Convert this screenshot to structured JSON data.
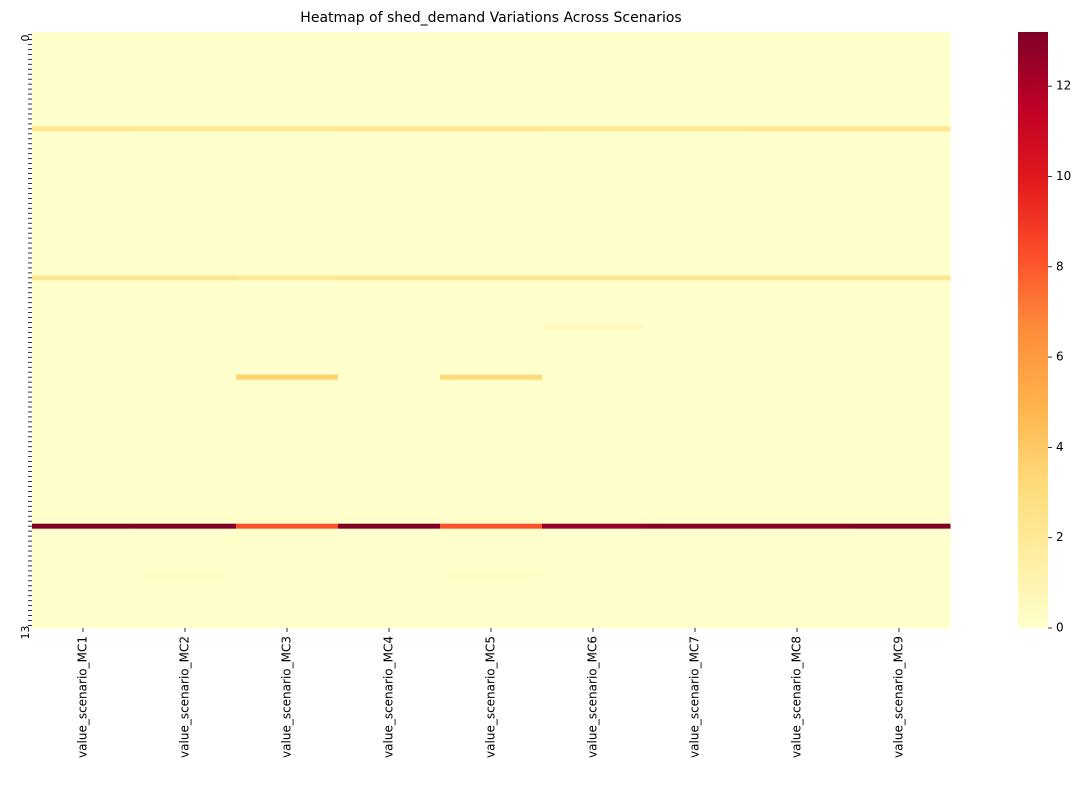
{
  "chart_data": {
    "type": "heatmap",
    "title": "Heatmap of shed_demand Variations Across Scenarios",
    "categories": [
      "value_scenario_MC1",
      "value_scenario_MC2",
      "value_scenario_MC3",
      "value_scenario_MC4",
      "value_scenario_MC5",
      "value_scenario_MC6",
      "value_scenario_MC7",
      "value_scenario_MC8",
      "value_scenario_MC9"
    ],
    "rows": [
      "0",
      null,
      null,
      null,
      null,
      null,
      null,
      null,
      null,
      null,
      null,
      null,
      null,
      null,
      null,
      null,
      null,
      null,
      null,
      null,
      null,
      null,
      null,
      null,
      null,
      null,
      null,
      null,
      null,
      null,
      null,
      null,
      null,
      null,
      null,
      null,
      null,
      null,
      null,
      null,
      null,
      null,
      null,
      null,
      null,
      null,
      null,
      null,
      null,
      null,
      null,
      null,
      null,
      null,
      null,
      null,
      null,
      null,
      null,
      null,
      null,
      null,
      null,
      null,
      null,
      null,
      null,
      null,
      null,
      null,
      null,
      null,
      null,
      null,
      null,
      null,
      null,
      null,
      null,
      null,
      null,
      null,
      null,
      null,
      null,
      null,
      null,
      null,
      null,
      null,
      null,
      null,
      null,
      null,
      null,
      null,
      null,
      null,
      null,
      null,
      null,
      null,
      null,
      null,
      null,
      null,
      null,
      null,
      null,
      null,
      null,
      null,
      null,
      null,
      null,
      null,
      null,
      null,
      null,
      "13"
    ],
    "values": [
      [
        0,
        0,
        0,
        0,
        0,
        0,
        0,
        0,
        0
      ],
      [
        0,
        0,
        0,
        0,
        0,
        0,
        0,
        0,
        0
      ],
      [
        0,
        0,
        0,
        0,
        0,
        0,
        0,
        0,
        0
      ],
      [
        0,
        0,
        0,
        0,
        0,
        0,
        0,
        0,
        0
      ],
      [
        0,
        0,
        0,
        0,
        0,
        0,
        0,
        0,
        0
      ],
      [
        0,
        0,
        0,
        0,
        0,
        0,
        0,
        0,
        0
      ],
      [
        0,
        0,
        0,
        0,
        0,
        0,
        0,
        0,
        0
      ],
      [
        0,
        0,
        0,
        0,
        0,
        0,
        0,
        0,
        0
      ],
      [
        0,
        0,
        0,
        0,
        0,
        0,
        0,
        0,
        0
      ],
      [
        0,
        0,
        0,
        0,
        0,
        0,
        0,
        0,
        0
      ],
      [
        0,
        0,
        0,
        0,
        0,
        0,
        0,
        0,
        0
      ],
      [
        0,
        0,
        0,
        0,
        0,
        0,
        0,
        0,
        0
      ],
      [
        0,
        0,
        0,
        0,
        0,
        0,
        0,
        0,
        0
      ],
      [
        0,
        0,
        0,
        0,
        0,
        0,
        0,
        0,
        0
      ],
      [
        0,
        0,
        0,
        0,
        0,
        0,
        0,
        0,
        0
      ],
      [
        0,
        0,
        0,
        0,
        0,
        0,
        0,
        0,
        0
      ],
      [
        0,
        0,
        0,
        0,
        0,
        0,
        0,
        0,
        0
      ],
      [
        0,
        0,
        0,
        0,
        0,
        0,
        0,
        0,
        0
      ],
      [
        0,
        0,
        0,
        0,
        0,
        0,
        0,
        0,
        0
      ],
      [
        2.2,
        2,
        2,
        2.2,
        2.2,
        2,
        2,
        2.2,
        2.2
      ],
      [
        0,
        0,
        0,
        0,
        0,
        0,
        0,
        0,
        0
      ],
      [
        0,
        0,
        0,
        0,
        0,
        0,
        0,
        0,
        0
      ],
      [
        0,
        0,
        0,
        0,
        0,
        0,
        0,
        0,
        0
      ],
      [
        0,
        0,
        0,
        0,
        0,
        0,
        0,
        0,
        0
      ],
      [
        0,
        0,
        0,
        0,
        0,
        0,
        0,
        0,
        0
      ],
      [
        0,
        0,
        0,
        0,
        0,
        0,
        0,
        0,
        0
      ],
      [
        0,
        0,
        0,
        0,
        0,
        0,
        0,
        0,
        0
      ],
      [
        0,
        0,
        0,
        0,
        0,
        0,
        0,
        0,
        0
      ],
      [
        0,
        0,
        0,
        0,
        0,
        0,
        0,
        0,
        0
      ],
      [
        0,
        0,
        0,
        0,
        0,
        0,
        0,
        0,
        0
      ],
      [
        0,
        0,
        0,
        0,
        0,
        0,
        0,
        0,
        0
      ],
      [
        0,
        0,
        0,
        0,
        0,
        0,
        0,
        0,
        0
      ],
      [
        0,
        0,
        0,
        0,
        0,
        0,
        0,
        0,
        0
      ],
      [
        0,
        0,
        0,
        0,
        0,
        0,
        0,
        0,
        0
      ],
      [
        0,
        0,
        0,
        0,
        0,
        0,
        0,
        0,
        0
      ],
      [
        0,
        0,
        0,
        0,
        0,
        0,
        0,
        0,
        0
      ],
      [
        0,
        0,
        0,
        0,
        0,
        0,
        0,
        0,
        0
      ],
      [
        0,
        0,
        0,
        0,
        0,
        0,
        0,
        0,
        0
      ],
      [
        0,
        0,
        0,
        0,
        0,
        0,
        0,
        0,
        0
      ],
      [
        0,
        0,
        0,
        0,
        0,
        0,
        0,
        0,
        0
      ],
      [
        0,
        0,
        0,
        0,
        0,
        0,
        0,
        0,
        0
      ],
      [
        0,
        0,
        0,
        0,
        0,
        0,
        0,
        0,
        0
      ],
      [
        0,
        0,
        0,
        0,
        0,
        0,
        0,
        0,
        0
      ],
      [
        0,
        0,
        0,
        0,
        0,
        0,
        0,
        0,
        0
      ],
      [
        0,
        0,
        0,
        0,
        0,
        0,
        0,
        0,
        0
      ],
      [
        0,
        0,
        0,
        0,
        0,
        0,
        0,
        0,
        0
      ],
      [
        0,
        0,
        0,
        0,
        0,
        0,
        0,
        0,
        0
      ],
      [
        0,
        0,
        0,
        0,
        0,
        0,
        0,
        0,
        0
      ],
      [
        0,
        0,
        0,
        0,
        0,
        0,
        0,
        0,
        0
      ],
      [
        2.2,
        2.2,
        2,
        2.2,
        2.2,
        2.2,
        2.2,
        2.2,
        2.2
      ],
      [
        0,
        0,
        0,
        0,
        0,
        0,
        0,
        0,
        0
      ],
      [
        0,
        0,
        0,
        0,
        0,
        0,
        0,
        0,
        0
      ],
      [
        0,
        0,
        0,
        0,
        0,
        0,
        0,
        0,
        0
      ],
      [
        0,
        0,
        0,
        0,
        0,
        0,
        0,
        0,
        0
      ],
      [
        0,
        0,
        0,
        0,
        0,
        0,
        0,
        0,
        0
      ],
      [
        0,
        0,
        0,
        0,
        0,
        0,
        0,
        0,
        0
      ],
      [
        0,
        0,
        0,
        0,
        0,
        0,
        0,
        0,
        0
      ],
      [
        0,
        0,
        0,
        0,
        0,
        0,
        0,
        0,
        0
      ],
      [
        0,
        0,
        0,
        0,
        0,
        0,
        0,
        0,
        0
      ],
      [
        0,
        0,
        0,
        0,
        0,
        0.6,
        0,
        0,
        0
      ],
      [
        0,
        0,
        0,
        0,
        0,
        0,
        0,
        0,
        0
      ],
      [
        0,
        0,
        0,
        0,
        0,
        0,
        0,
        0,
        0
      ],
      [
        0,
        0,
        0,
        0,
        0,
        0,
        0,
        0,
        0
      ],
      [
        0,
        0,
        0,
        0,
        0,
        0,
        0,
        0,
        0
      ],
      [
        0,
        0,
        0,
        0,
        0,
        0,
        0,
        0,
        0
      ],
      [
        0,
        0,
        0,
        0,
        0,
        0,
        0,
        0,
        0
      ],
      [
        0,
        0,
        0,
        0,
        0,
        0,
        0,
        0,
        0
      ],
      [
        0,
        0,
        0,
        0,
        0,
        0,
        0,
        0,
        0
      ],
      [
        0,
        0,
        0,
        0,
        0,
        0,
        0,
        0,
        0
      ],
      [
        0,
        0,
        3.6,
        0,
        3.2,
        0,
        0,
        0,
        0
      ],
      [
        0,
        0,
        0,
        0,
        0,
        0,
        0,
        0,
        0
      ],
      [
        0,
        0,
        0,
        0,
        0,
        0,
        0,
        0,
        0
      ],
      [
        0,
        0,
        0,
        0,
        0,
        0,
        0,
        0,
        0
      ],
      [
        0,
        0,
        0,
        0,
        0,
        0,
        0,
        0,
        0
      ],
      [
        0,
        0,
        0,
        0,
        0,
        0,
        0,
        0,
        0
      ],
      [
        0,
        0,
        0,
        0,
        0,
        0,
        0,
        0,
        0
      ],
      [
        0,
        0,
        0,
        0,
        0,
        0,
        0,
        0,
        0
      ],
      [
        0,
        0,
        0,
        0,
        0,
        0,
        0,
        0,
        0
      ],
      [
        0,
        0,
        0,
        0,
        0,
        0,
        0,
        0,
        0
      ],
      [
        0,
        0,
        0,
        0,
        0,
        0,
        0,
        0,
        0
      ],
      [
        0,
        0,
        0,
        0,
        0,
        0,
        0,
        0,
        0
      ],
      [
        0,
        0,
        0,
        0,
        0,
        0,
        0,
        0,
        0
      ],
      [
        0,
        0,
        0,
        0,
        0,
        0,
        0,
        0,
        0
      ],
      [
        0,
        0,
        0,
        0,
        0,
        0,
        0,
        0,
        0
      ],
      [
        0,
        0,
        0,
        0,
        0,
        0,
        0,
        0,
        0
      ],
      [
        0,
        0,
        0,
        0,
        0,
        0,
        0,
        0,
        0
      ],
      [
        0,
        0,
        0,
        0,
        0,
        0,
        0,
        0,
        0
      ],
      [
        0,
        0,
        0,
        0,
        0,
        0,
        0,
        0,
        0
      ],
      [
        0,
        0,
        0,
        0,
        0,
        0,
        0,
        0,
        0
      ],
      [
        0,
        0,
        0,
        0,
        0,
        0,
        0,
        0,
        0
      ],
      [
        0,
        0,
        0,
        0,
        0,
        0,
        0,
        0,
        0
      ],
      [
        0,
        0,
        0,
        0,
        0,
        0,
        0,
        0,
        0
      ],
      [
        0,
        0,
        0,
        0,
        0,
        0,
        0,
        0,
        0
      ],
      [
        0,
        0,
        0,
        0,
        0,
        0,
        0,
        0,
        0
      ],
      [
        0,
        0,
        0,
        0,
        0,
        0,
        0,
        0,
        0
      ],
      [
        0,
        0,
        0,
        0,
        0,
        0,
        0,
        0,
        0
      ],
      [
        0,
        0,
        0,
        0,
        0,
        0,
        0,
        0,
        0
      ],
      [
        0,
        0,
        0,
        0,
        0,
        0,
        0,
        0,
        0
      ],
      [
        0,
        0,
        0,
        0,
        0,
        0,
        0,
        0,
        0
      ],
      [
        13.2,
        13.2,
        8.2,
        13.2,
        8.2,
        12.6,
        13,
        13,
        13.2
      ],
      [
        0,
        0,
        0,
        0,
        0,
        0,
        0,
        0,
        0
      ],
      [
        0,
        0,
        0,
        0,
        0,
        0,
        0,
        0,
        0
      ],
      [
        0,
        0,
        0,
        0,
        0,
        0,
        0,
        0,
        0
      ],
      [
        0,
        0,
        0,
        0,
        0,
        0,
        0,
        0,
        0
      ],
      [
        0,
        0,
        0,
        0,
        0,
        0,
        0,
        0,
        0
      ],
      [
        0,
        0,
        0,
        0,
        0,
        0,
        0,
        0,
        0
      ],
      [
        0,
        0,
        0,
        0,
        0,
        0,
        0,
        0,
        0
      ],
      [
        0,
        0,
        0,
        0,
        0,
        0,
        0,
        0,
        0
      ],
      [
        0,
        0,
        0,
        0,
        0,
        0,
        0,
        0,
        0
      ],
      [
        0,
        0.3,
        0,
        0,
        0.3,
        0,
        0,
        0,
        0
      ],
      [
        0,
        0,
        0,
        0,
        0,
        0,
        0,
        0,
        0
      ],
      [
        0,
        0,
        0,
        0,
        0,
        0,
        0,
        0,
        0
      ],
      [
        0,
        0,
        0,
        0,
        0,
        0,
        0,
        0,
        0
      ],
      [
        0,
        0,
        0,
        0,
        0,
        0,
        0,
        0,
        0
      ],
      [
        0,
        0,
        0,
        0,
        0,
        0,
        0,
        0,
        0
      ],
      [
        0,
        0,
        0,
        0,
        0,
        0,
        0,
        0,
        0
      ],
      [
        0,
        0,
        0,
        0,
        0,
        0,
        0,
        0,
        0
      ],
      [
        0,
        0,
        0,
        0,
        0,
        0,
        0,
        0,
        0
      ],
      [
        0,
        0,
        0,
        0,
        0,
        0,
        0,
        0,
        0
      ],
      [
        0,
        0,
        0,
        0,
        0,
        0,
        0,
        0,
        0
      ]
    ],
    "colormap": [
      "#ffffcc",
      "#ffeda0",
      "#fed976",
      "#feb24c",
      "#fd8d3c",
      "#fc4e2a",
      "#e31a1c",
      "#bd0026",
      "#800026"
    ],
    "clim": [
      0,
      13.2
    ],
    "cticks": [
      0,
      2,
      4,
      6,
      8,
      10,
      12
    ]
  }
}
